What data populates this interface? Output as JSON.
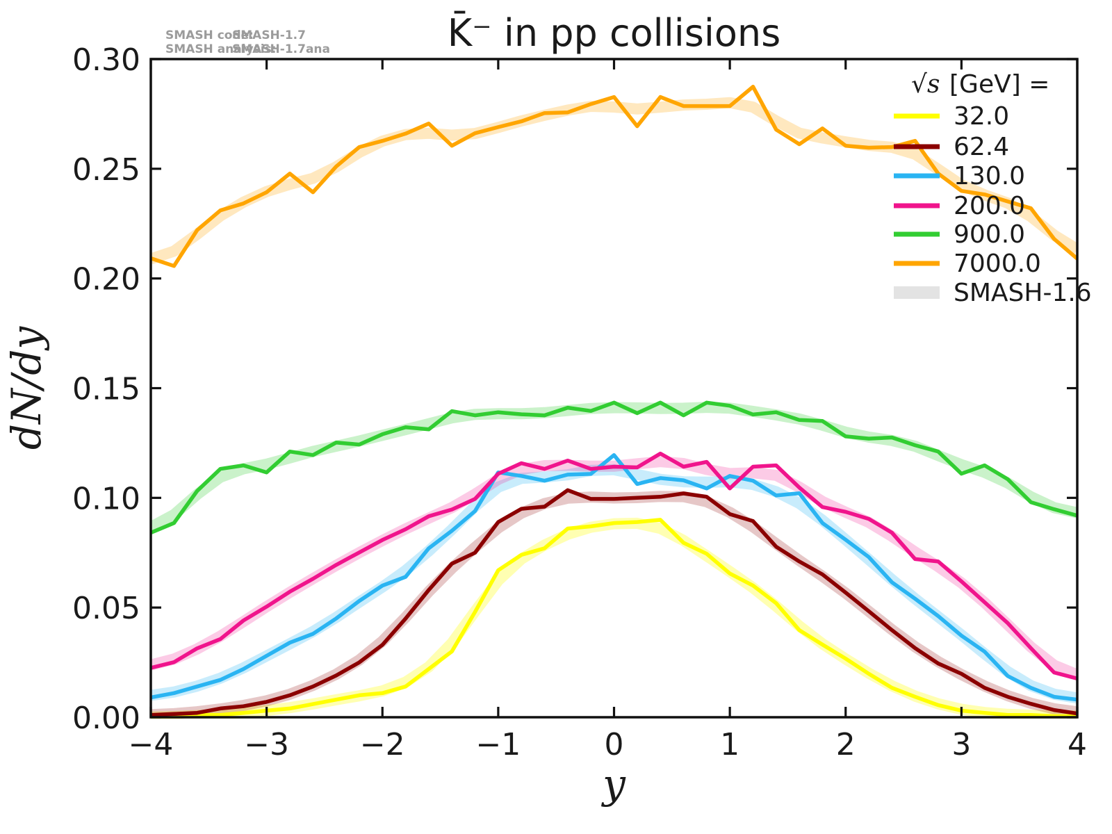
{
  "annotations": {
    "code_label": "SMASH code:",
    "code_value": "SMASH-1.7",
    "analysis_label": "SMASH analysis:",
    "analysis_value": "SMASH-1.7ana"
  },
  "chart_data": {
    "type": "line",
    "title": "K̄⁻ in pp collisions",
    "xlabel": "y",
    "ylabel": "dN/dy",
    "xlim": [
      -4,
      4
    ],
    "ylim": [
      0.0,
      0.3
    ],
    "grid": false,
    "x_ticks": [
      -4,
      -3,
      -2,
      -1,
      0,
      1,
      2,
      3,
      4
    ],
    "x_tick_labels": [
      "−4",
      "−3",
      "−2",
      "−1",
      "0",
      "1",
      "2",
      "3",
      "4"
    ],
    "y_ticks": [
      0.0,
      0.05,
      0.1,
      0.15,
      0.2,
      0.25,
      0.3
    ],
    "y_tick_labels": [
      "0.00",
      "0.05",
      "0.10",
      "0.15",
      "0.20",
      "0.25",
      "0.30"
    ],
    "legend": {
      "position": "upper right",
      "title_radical": "√s",
      "title_rest": "[GeV] =",
      "entries": [
        {
          "label": "32.0",
          "color": "#ffff00",
          "swatch_height": 7
        },
        {
          "label": "62.4",
          "color": "#8b0000",
          "swatch_height": 7
        },
        {
          "label": "130.0",
          "color": "#2ab4f2",
          "swatch_height": 7
        },
        {
          "label": "200.0",
          "color": "#f0148c",
          "swatch_height": 7
        },
        {
          "label": "900.0",
          "color": "#32cd32",
          "swatch_height": 7
        },
        {
          "label": "7000.0",
          "color": "#ffa500",
          "swatch_height": 7
        },
        {
          "label": "SMASH-1.6",
          "color": "#e3e3e3",
          "swatch_height": 18
        }
      ]
    },
    "band_note": "SMASH-1.6 results drawn as pale thick bands of the same hue behind each SMASH-1.7 line",
    "x": [
      -4.0,
      -3.8,
      -3.6,
      -3.4,
      -3.2,
      -3.0,
      -2.8,
      -2.6,
      -2.4,
      -2.2,
      -2.0,
      -1.8,
      -1.6,
      -1.4,
      -1.2,
      -1.0,
      -0.8,
      -0.6,
      -0.4,
      -0.2,
      0.0,
      0.2,
      0.4,
      0.6,
      0.8,
      1.0,
      1.2,
      1.4,
      1.6,
      1.8,
      2.0,
      2.2,
      2.4,
      2.6,
      2.8,
      3.0,
      3.2,
      3.4,
      3.6,
      3.8,
      4.0
    ],
    "series": [
      {
        "name": "32.0",
        "color": "#ffff00",
        "band_color": "rgba(255,255,0,0.30)",
        "values": [
          0.0,
          0.0,
          0.001,
          0.001,
          0.002,
          0.003,
          0.004,
          0.006,
          0.008,
          0.01,
          0.011,
          0.014,
          0.022,
          0.03,
          0.048,
          0.067,
          0.074,
          0.077,
          0.086,
          0.087,
          0.0885,
          0.089,
          0.09,
          0.0795,
          0.0745,
          0.0655,
          0.06,
          0.052,
          0.0397,
          0.0331,
          0.0267,
          0.0198,
          0.0134,
          0.0093,
          0.0055,
          0.003,
          0.002,
          0.001,
          0.001,
          0.0005,
          0.0005
        ]
      },
      {
        "name": "62.4",
        "color": "#8b0000",
        "band_color": "rgba(139,0,0,0.22)",
        "values": [
          0.001,
          0.0015,
          0.002,
          0.004,
          0.005,
          0.007,
          0.01,
          0.014,
          0.019,
          0.025,
          0.033,
          0.045,
          0.058,
          0.07,
          0.075,
          0.089,
          0.095,
          0.096,
          0.1035,
          0.0995,
          0.0995,
          0.1,
          0.1005,
          0.102,
          0.1005,
          0.0926,
          0.0894,
          0.0777,
          0.071,
          0.0651,
          0.0568,
          0.0483,
          0.0397,
          0.0315,
          0.0245,
          0.0198,
          0.0134,
          0.0093,
          0.0061,
          0.0033,
          0.0017
        ]
      },
      {
        "name": "130.0",
        "color": "#2ab4f2",
        "band_color": "rgba(42,180,242,0.26)",
        "values": [
          0.009,
          0.011,
          0.014,
          0.017,
          0.022,
          0.028,
          0.034,
          0.038,
          0.045,
          0.053,
          0.06,
          0.064,
          0.077,
          0.085,
          0.094,
          0.1116,
          0.11,
          0.1078,
          0.1106,
          0.1109,
          0.1195,
          0.1063,
          0.109,
          0.108,
          0.1043,
          0.11,
          0.1078,
          0.1011,
          0.1021,
          0.0885,
          0.0809,
          0.073,
          0.0615,
          0.054,
          0.0461,
          0.0372,
          0.0299,
          0.0188,
          0.0134,
          0.0093,
          0.008
        ]
      },
      {
        "name": "200.0",
        "color": "#f0148c",
        "band_color": "rgba(240,20,140,0.22)",
        "values": [
          0.0225,
          0.0251,
          0.0314,
          0.0356,
          0.0441,
          0.0504,
          0.0572,
          0.0631,
          0.0694,
          0.0751,
          0.0808,
          0.0857,
          0.0916,
          0.0947,
          0.0995,
          0.111,
          0.1158,
          0.1132,
          0.117,
          0.1132,
          0.1142,
          0.1139,
          0.1202,
          0.1142,
          0.1164,
          0.1043,
          0.1142,
          0.1148,
          0.1047,
          0.0958,
          0.0936,
          0.0904,
          0.0841,
          0.0721,
          0.071,
          0.0619,
          0.0524,
          0.0429,
          0.0315,
          0.0204,
          0.0176
        ]
      },
      {
        "name": "900.0",
        "color": "#32cd32",
        "band_color": "rgba(50,205,50,0.26)",
        "values": [
          0.0841,
          0.0885,
          0.1031,
          0.1132,
          0.1148,
          0.1116,
          0.1211,
          0.1195,
          0.1252,
          0.1243,
          0.129,
          0.1322,
          0.1312,
          0.1395,
          0.1376,
          0.139,
          0.1381,
          0.1376,
          0.1411,
          0.1396,
          0.1434,
          0.1386,
          0.1434,
          0.1376,
          0.1434,
          0.142,
          0.138,
          0.139,
          0.1355,
          0.135,
          0.128,
          0.127,
          0.1275,
          0.124,
          0.1211,
          0.111,
          0.1148,
          0.1085,
          0.098,
          0.0948,
          0.0919
        ]
      },
      {
        "name": "7000.0",
        "color": "#ffa500",
        "band_color": "rgba(255,165,0,0.25)",
        "values": [
          0.2092,
          0.2057,
          0.222,
          0.231,
          0.2342,
          0.2393,
          0.2478,
          0.2393,
          0.251,
          0.2599,
          0.2627,
          0.266,
          0.2706,
          0.2605,
          0.2662,
          0.269,
          0.2716,
          0.2754,
          0.2757,
          0.2795,
          0.2827,
          0.2694,
          0.2827,
          0.2786,
          0.2786,
          0.2786,
          0.2874,
          0.2678,
          0.2612,
          0.2684,
          0.2605,
          0.2596,
          0.2599,
          0.2627,
          0.2478,
          0.2399,
          0.2383,
          0.2351,
          0.232,
          0.218,
          0.209
        ]
      }
    ]
  },
  "colors": {
    "axes": "#111111",
    "text": "#1a1a1a",
    "annotation": "#9b9b9b",
    "background": "#ffffff"
  }
}
